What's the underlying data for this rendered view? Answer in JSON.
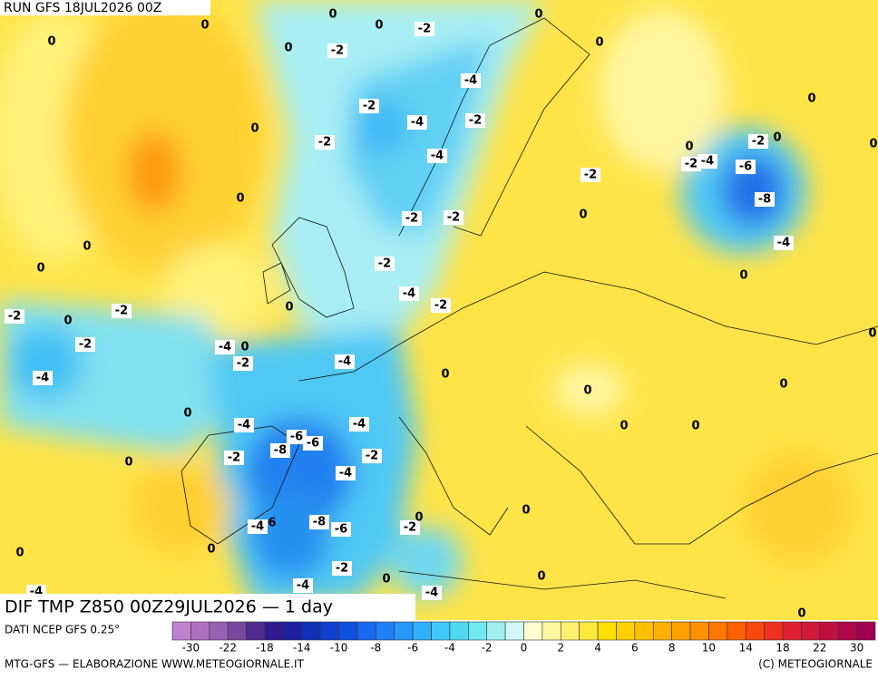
{
  "header": {
    "run": "RUN GFS 18JUL2026 00Z"
  },
  "title": "DIF TMP Z850 00Z29JUL2026 — 1 day",
  "footer": {
    "source": "DATI NCEP GFS 0.25°",
    "credit": "MTG-GFS — ELABORAZIONE WWW.METEOGIORNALE.IT",
    "copyright": "(C) METEOGIORNALE"
  },
  "colorbar": {
    "colors": [
      "#c080d0",
      "#b070c0",
      "#9860b0",
      "#7848a0",
      "#502c90",
      "#301c90",
      "#2020a0",
      "#1030b8",
      "#1040d0",
      "#1050e0",
      "#1868f0",
      "#2080f8",
      "#2898f8",
      "#30b0f8",
      "#40c8f8",
      "#50d8f0",
      "#70e8f0",
      "#a0f0f0",
      "#d0f8f8",
      "#ffffd0",
      "#fff8a0",
      "#fff070",
      "#ffe840",
      "#ffe000",
      "#ffd000",
      "#ffc000",
      "#ffb000",
      "#ffa000",
      "#ff9000",
      "#ff7800",
      "#ff6000",
      "#f84810",
      "#f03020",
      "#e02030",
      "#d01838",
      "#c01040",
      "#b00848",
      "#a00050"
    ],
    "labels": [
      -30,
      -22,
      -18,
      -14,
      -10,
      -8,
      -6,
      -4,
      -2,
      0,
      2,
      4,
      6,
      8,
      10,
      14,
      18,
      22,
      30
    ]
  },
  "contour_labels": [
    0,
    0,
    0,
    0,
    -2,
    0,
    -2,
    0,
    0,
    -4,
    -2,
    -4,
    -2,
    0,
    -2,
    -4,
    0,
    0,
    -2,
    0,
    0,
    -2,
    -4,
    -6,
    -2,
    0,
    -8,
    -2,
    -2,
    0,
    0,
    -4,
    0,
    -2,
    0,
    -4,
    -2,
    0,
    -2,
    0,
    -2,
    -2,
    -4,
    0,
    -2,
    -4,
    0,
    -4,
    0,
    0,
    0,
    -4,
    -4,
    0,
    0,
    -6,
    -8,
    -6,
    -2,
    -2,
    0,
    -4,
    0,
    -8,
    -6,
    -4,
    6,
    -2,
    0,
    0,
    0,
    0,
    -2,
    -4,
    0,
    0,
    -4,
    0,
    -4
  ]
}
